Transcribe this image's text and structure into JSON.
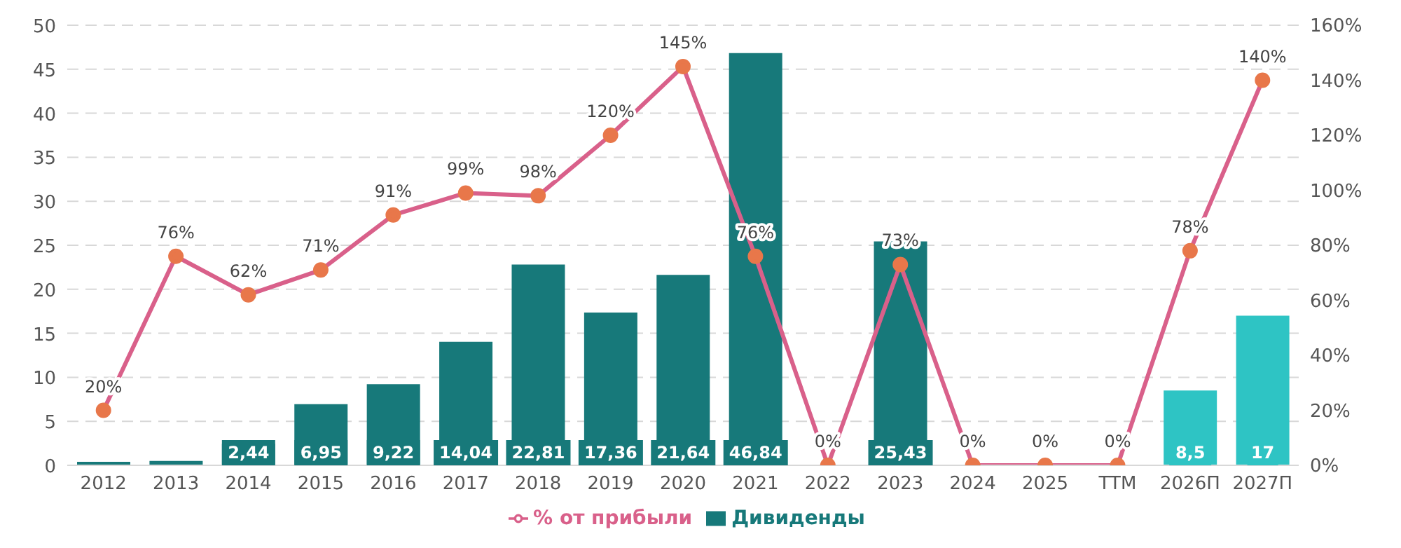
{
  "chart_data": {
    "type": "bar",
    "categories": [
      "2012",
      "2013",
      "2014",
      "2015",
      "2016",
      "2017",
      "2018",
      "2019",
      "2020",
      "2021",
      "2022",
      "2023",
      "2024",
      "2025",
      "TTM",
      "2026П",
      "2027П"
    ],
    "series": [
      {
        "name": "Дивиденды",
        "color": "#17797a",
        "colors": [
          "#17797a",
          "#17797a",
          "#17797a",
          "#17797a",
          "#17797a",
          "#17797a",
          "#17797a",
          "#17797a",
          "#17797a",
          "#17797a",
          "#17797a",
          "#17797a",
          "#17797a",
          "#17797a",
          "#17797a",
          "#2ec4c4",
          "#2ec4c4"
        ],
        "values": [
          0.4,
          0.5,
          2.44,
          6.95,
          9.22,
          14.04,
          22.81,
          17.36,
          21.64,
          46.84,
          null,
          25.43,
          null,
          null,
          null,
          8.5,
          17
        ],
        "value_labels": [
          null,
          null,
          "2,44",
          "6,95",
          "9,22",
          "14,04",
          "22,81",
          "17,36",
          "21,64",
          "46,84",
          null,
          "25,43",
          null,
          null,
          null,
          "8,5",
          "17"
        ]
      },
      {
        "name": "% от прибыли",
        "type": "line",
        "axis": "y2",
        "color": "#d9608a",
        "values": [
          20,
          76,
          62,
          71,
          91,
          99,
          98,
          120,
          145,
          76,
          0,
          73,
          0,
          0,
          0,
          78,
          140
        ],
        "value_labels": [
          "20%",
          "76%",
          "62%",
          "71%",
          "91%",
          "99%",
          "98%",
          "120%",
          "145%",
          "76%",
          "0%",
          "73%",
          "0%",
          "0%",
          "0%",
          "78%",
          "140%"
        ]
      }
    ],
    "ylim": [
      0,
      50
    ],
    "yticks": [
      0,
      5,
      10,
      15,
      20,
      25,
      30,
      35,
      40,
      45,
      50
    ],
    "y2lim": [
      0,
      160
    ],
    "y2ticks": [
      {
        "value": 0,
        "label": "0%"
      },
      {
        "value": 20,
        "label": "20%"
      },
      {
        "value": 40,
        "label": "40%"
      },
      {
        "value": 60,
        "label": "60%"
      },
      {
        "value": 80,
        "label": "80%"
      },
      {
        "value": 100,
        "label": "100%"
      },
      {
        "value": 120,
        "label": "120%"
      },
      {
        "value": 140,
        "label": "140%"
      },
      {
        "value": 160,
        "label": "160%"
      }
    ],
    "grid": "y",
    "legend": "bottom",
    "marker": "circle",
    "line_style": "solid"
  }
}
